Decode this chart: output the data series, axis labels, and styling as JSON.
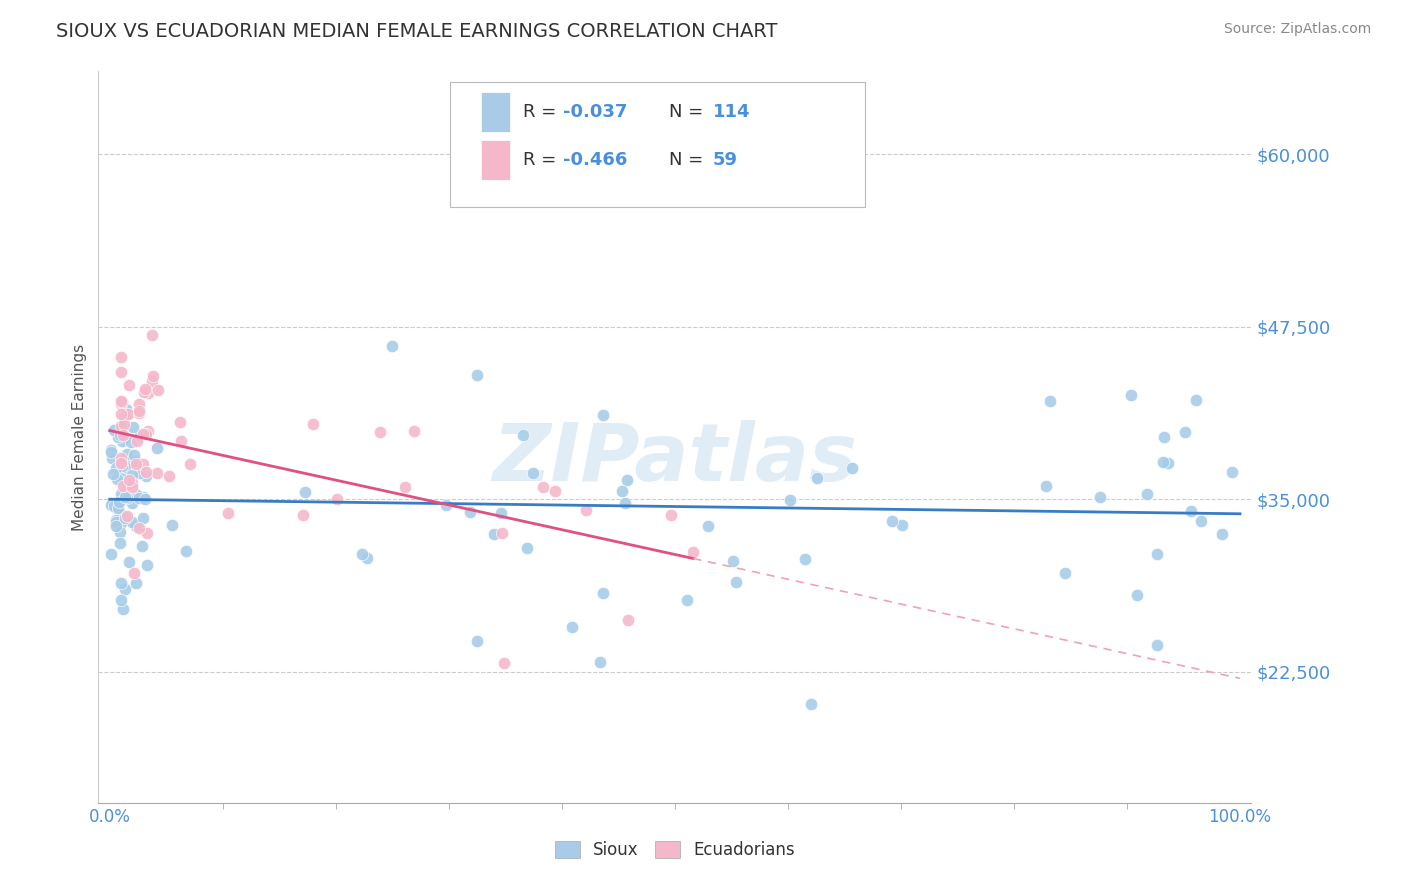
{
  "title": "SIOUX VS ECUADORIAN MEDIAN FEMALE EARNINGS CORRELATION CHART",
  "source": "Source: ZipAtlas.com",
  "ylabel": "Median Female Earnings",
  "ytick_positions": [
    22500,
    35000,
    47500,
    60000
  ],
  "ytick_labels": [
    "$22,500",
    "$35,000",
    "$47,500",
    "$60,000"
  ],
  "ymin": 13000,
  "ymax": 66000,
  "xmin": -0.01,
  "xmax": 1.01,
  "sioux_color": "#a8cce8",
  "ecuadorian_color": "#f5b8cb",
  "trend_sioux_color": "#3a7cc4",
  "trend_ecuadorian_solid_color": "#e05080",
  "trend_ecuadorian_dash_color": "#f0a0b8",
  "legend_R1": "-0.037",
  "legend_N1": "114",
  "legend_R2": "-0.466",
  "legend_N2": "59",
  "watermark": "ZIPatlas",
  "blue_text_color": "#4a90d9",
  "title_color": "#333333",
  "source_color": "#888888",
  "grid_color": "#cccccc",
  "axis_color": "#aaaaaa"
}
